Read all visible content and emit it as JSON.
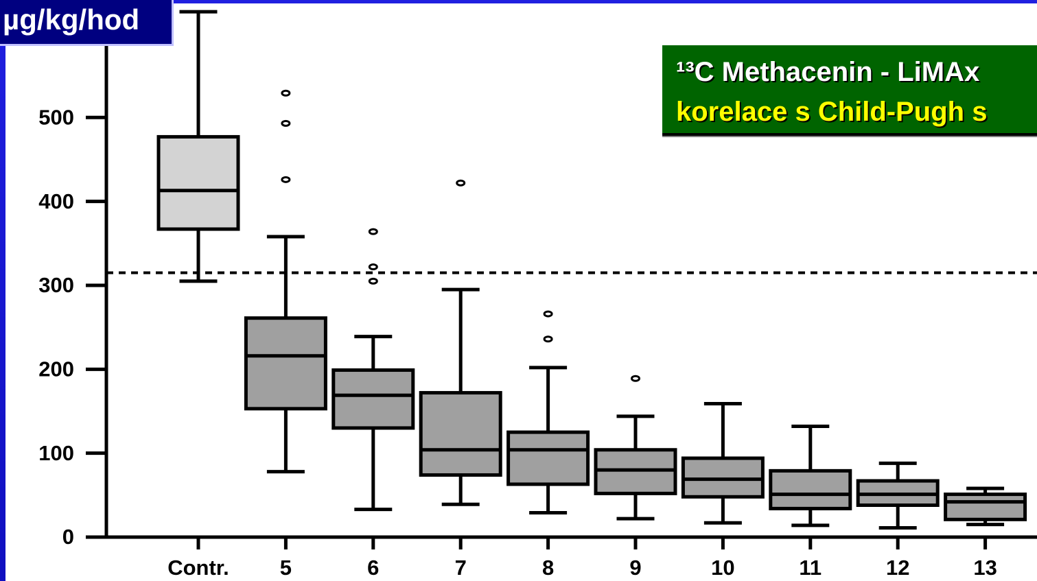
{
  "chart_data": {
    "type": "box",
    "unit_label": "µg/kg/hod",
    "title_lines": [
      "¹³C Methacenin - LiMAx",
      "korelace s Child-Pugh s"
    ],
    "categories": [
      "Contr.",
      "5",
      "6",
      "7",
      "8",
      "9",
      "10",
      "11",
      "12",
      "13"
    ],
    "whisker_high": [
      626,
      358,
      239,
      295,
      202,
      144,
      159,
      132,
      88,
      58
    ],
    "q3": [
      477,
      261,
      199,
      172,
      125,
      104,
      94,
      79,
      67,
      51
    ],
    "median": [
      413,
      216,
      169,
      104,
      104,
      80,
      69,
      51,
      51,
      42
    ],
    "q1": [
      367,
      153,
      130,
      74,
      63,
      52,
      48,
      34,
      38,
      21
    ],
    "whisker_low": [
      305,
      78,
      33,
      39,
      29,
      22,
      17,
      14,
      11,
      15
    ],
    "outliers": [
      [],
      [
        529,
        493,
        426
      ],
      [
        364,
        322,
        305
      ],
      [
        422
      ],
      [
        266,
        236
      ],
      [
        189
      ],
      [],
      [],
      [],
      []
    ],
    "colors": [
      "#d3d3d3",
      "#a0a0a0",
      "#a0a0a0",
      "#a0a0a0",
      "#a0a0a0",
      "#a0a0a0",
      "#a0a0a0",
      "#a0a0a0",
      "#a0a0a0",
      "#a0a0a0"
    ],
    "reference_line": 315,
    "ylim": [
      0,
      640
    ],
    "yticks": [
      0,
      100,
      200,
      300,
      400,
      500
    ]
  }
}
